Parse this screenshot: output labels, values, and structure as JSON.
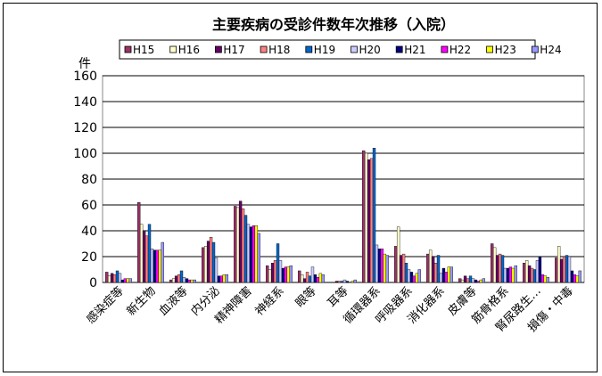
{
  "chart_data": {
    "type": "bar",
    "title": "主要疾病の受診件数年次推移（入院）",
    "ylabel": "件",
    "xlabel": "",
    "ylim": [
      0,
      160
    ],
    "yticks": [
      0,
      20,
      40,
      60,
      80,
      100,
      120,
      140,
      160
    ],
    "grid": true,
    "legend_position": "top",
    "categories": [
      "感染症等",
      "新生物",
      "血液等",
      "内分泌",
      "精神障害",
      "神経系",
      "眼等",
      "耳等",
      "循環器系",
      "呼吸器系",
      "消化器系",
      "皮膚等",
      "筋骨格系",
      "腎尿路生…",
      "損傷・中毒"
    ],
    "series": [
      {
        "name": "H15",
        "color": "#993366",
        "values": [
          8,
          62,
          2,
          27,
          59,
          13,
          9,
          0,
          102,
          28,
          22,
          3,
          30,
          15,
          19
        ]
      },
      {
        "name": "H16",
        "color": "#ffffcc",
        "values": [
          5,
          45,
          3,
          28,
          58,
          10,
          6,
          0,
          100,
          43,
          25,
          2,
          27,
          17,
          28
        ]
      },
      {
        "name": "H17",
        "color": "#660066",
        "values": [
          7,
          40,
          5,
          32,
          63,
          15,
          3,
          1,
          95,
          21,
          20,
          5,
          21,
          13,
          18
        ]
      },
      {
        "name": "H18",
        "color": "#ff8080",
        "values": [
          6,
          36,
          6,
          35,
          57,
          17,
          8,
          1,
          96,
          22,
          15,
          3,
          22,
          11,
          20
        ]
      },
      {
        "name": "H19",
        "color": "#0066cc",
        "values": [
          9,
          45,
          9,
          31,
          52,
          30,
          5,
          1,
          104,
          15,
          21,
          5,
          21,
          10,
          21
        ]
      },
      {
        "name": "H20",
        "color": "#ccccff",
        "values": [
          7,
          26,
          4,
          19,
          45,
          17,
          12,
          2,
          29,
          10,
          7,
          3,
          11,
          17,
          20
        ]
      },
      {
        "name": "H21",
        "color": "#000080",
        "values": [
          2,
          25,
          3,
          5,
          43,
          11,
          6,
          1,
          26,
          8,
          11,
          2,
          11,
          20,
          9
        ]
      },
      {
        "name": "H22",
        "color": "#ff00ff",
        "values": [
          3,
          25,
          2,
          5,
          44,
          12,
          4,
          0,
          26,
          5,
          8,
          1,
          12,
          6,
          6
        ]
      },
      {
        "name": "H23",
        "color": "#ffff00",
        "values": [
          3,
          25,
          2,
          6,
          44,
          12,
          7,
          1,
          22,
          7,
          12,
          2,
          11,
          5,
          5
        ]
      },
      {
        "name": "H24",
        "color": "#9999ff",
        "values": [
          3,
          31,
          2,
          6,
          38,
          13,
          6,
          2,
          21,
          10,
          12,
          3,
          13,
          4,
          9
        ]
      }
    ]
  }
}
